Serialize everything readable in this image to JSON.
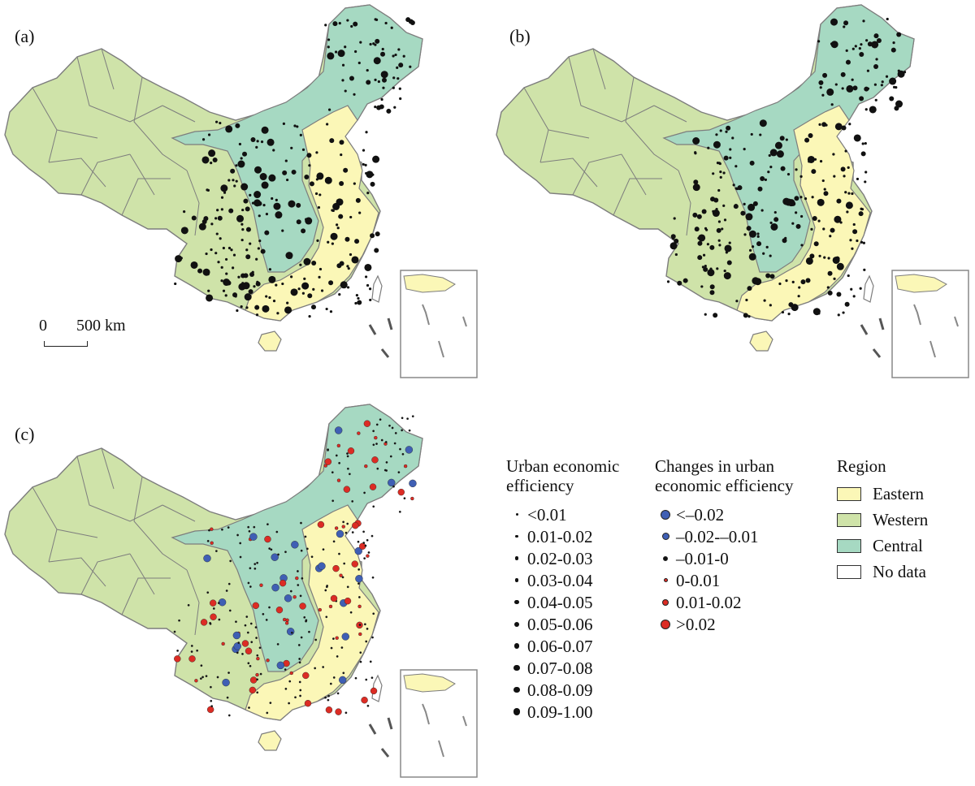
{
  "panels": [
    {
      "label": "(a)"
    },
    {
      "label": "(b)"
    },
    {
      "label": "(c)"
    }
  ],
  "scale": {
    "zero": "0",
    "distance": "500 km"
  },
  "colors": {
    "eastern": "#fbf7b7",
    "western": "#cfe3a9",
    "central": "#a6d9c2",
    "no_data": "#ffffff",
    "border": "#7d7d7d",
    "decrease": "#3f5fb4",
    "increase": "#dc2c24",
    "point": "#111111"
  },
  "legend_efficiency": {
    "title_line1": "Urban economic",
    "title_line2": "efficiency",
    "items": [
      "<0.01",
      "0.01-0.02",
      "0.02-0.03",
      "0.03-0.04",
      "0.04-0.05",
      "0.05-0.06",
      "0.06-0.07",
      "0.07-0.08",
      "0.08-0.09",
      "0.09-1.00"
    ]
  },
  "legend_changes": {
    "title_line1": "Changes in urban",
    "title_line2": "economic efficiency",
    "items": [
      "<–0.02",
      "–0.02-–0.01",
      "–0.01-0",
      "0-0.01",
      "0.01-0.02",
      ">0.02"
    ]
  },
  "legend_region": {
    "title": "Region",
    "items": [
      "Eastern",
      "Western",
      "Central",
      "No data"
    ]
  }
}
